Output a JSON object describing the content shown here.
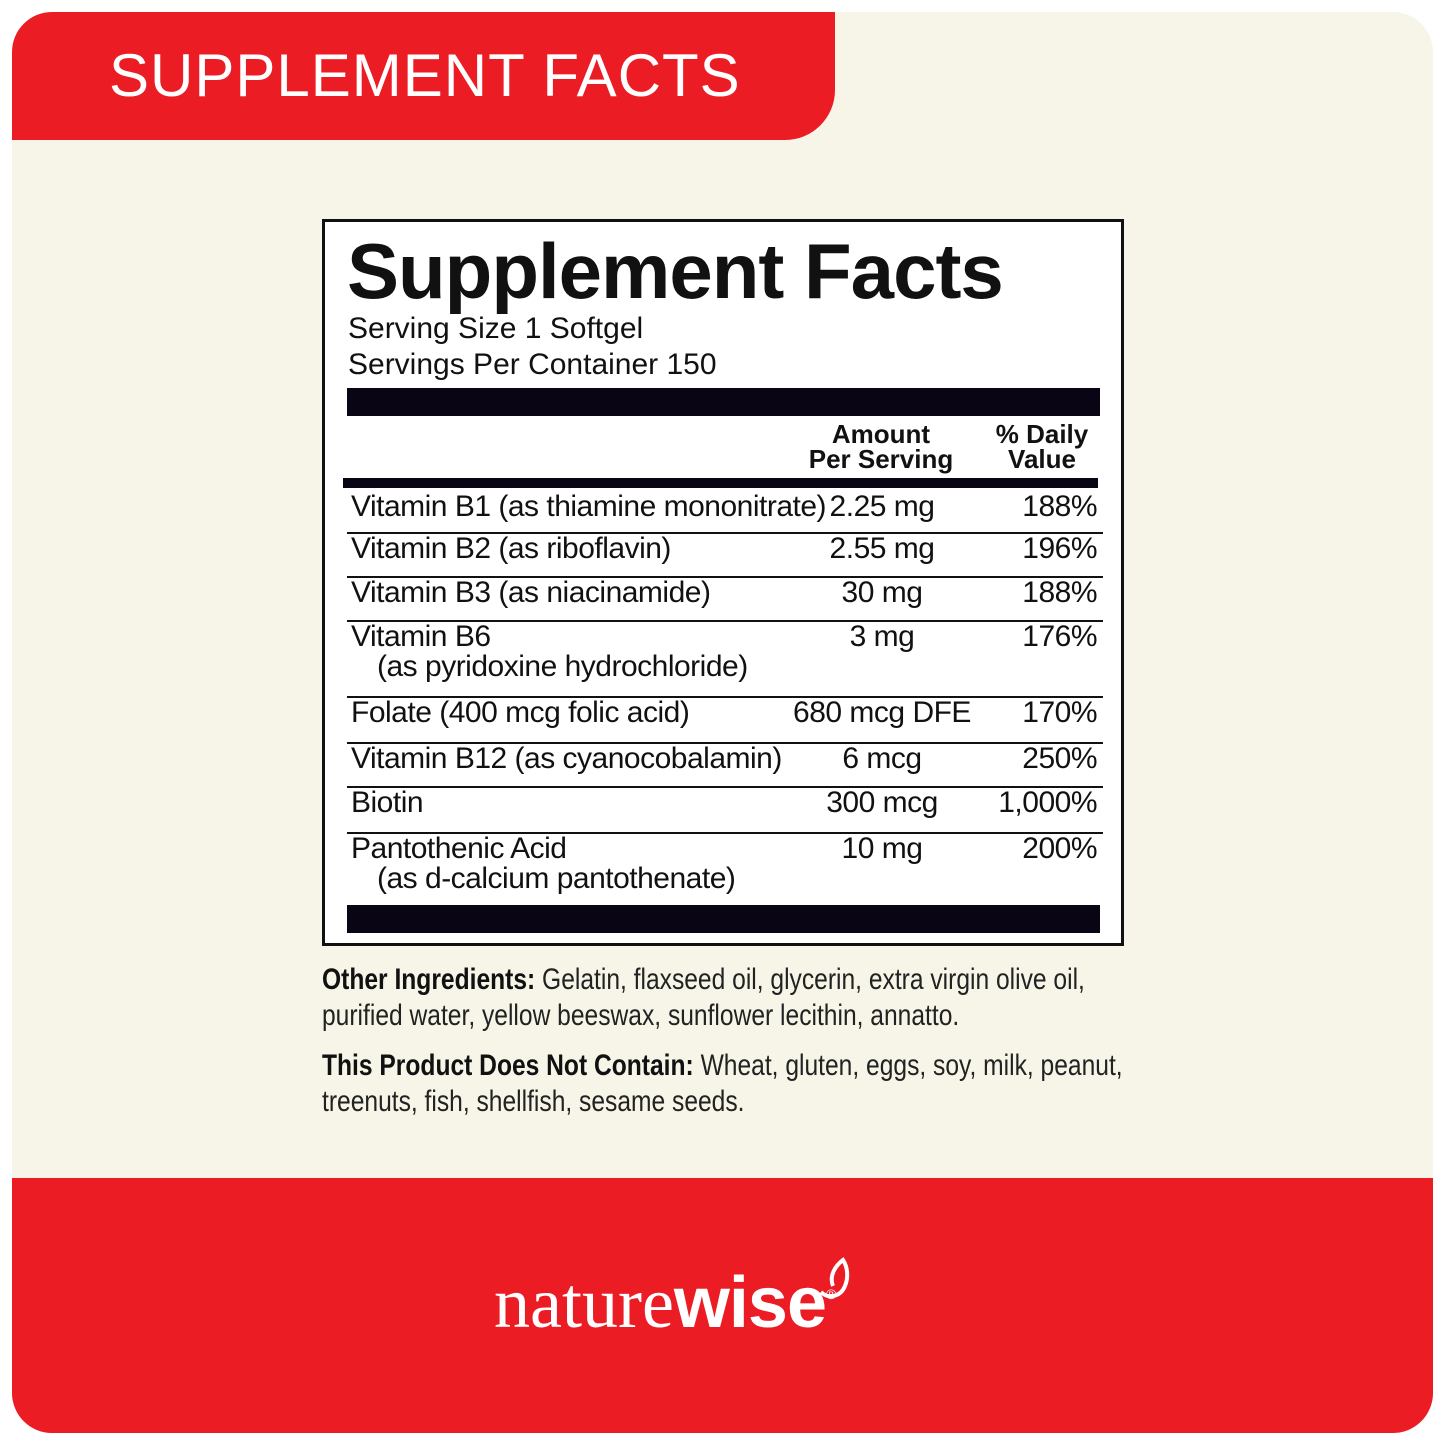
{
  "banner": {
    "title": "SUPPLEMENT FACTS"
  },
  "facts": {
    "title": "Supplement Facts",
    "serving_size": "Serving Size 1 Softgel",
    "servings_per_container": "Servings Per Container 150",
    "col_amount": [
      "Amount",
      "Per Serving"
    ],
    "col_dv": [
      "% Daily",
      "Value"
    ],
    "rows": [
      {
        "name": "Vitamin B1 (as thiamine mononitrate)",
        "sub": "",
        "amount": "2.25 mg",
        "dv": "188%"
      },
      {
        "name": "Vitamin B2 (as riboflavin)",
        "sub": "",
        "amount": "2.55 mg",
        "dv": "196%"
      },
      {
        "name": "Vitamin B3 (as niacinamide)",
        "sub": "",
        "amount": "30 mg",
        "dv": "188%"
      },
      {
        "name": "Vitamin B6",
        "sub": "(as pyridoxine hydrochloride)",
        "amount": "3 mg",
        "dv": "176%"
      },
      {
        "name": "Folate (400 mcg folic acid)",
        "sub": "",
        "amount": "680 mcg DFE",
        "dv": "170%"
      },
      {
        "name": "Vitamin B12 (as cyanocobalamin)",
        "sub": "",
        "amount": "6 mcg",
        "dv": "250%"
      },
      {
        "name": "Biotin",
        "sub": "",
        "amount": "300 mcg",
        "dv": "1,000%"
      },
      {
        "name": "Pantothenic Acid",
        "sub": "(as d-calcium pantothenate)",
        "amount": "10 mg",
        "dv": "200%"
      }
    ]
  },
  "other_ingredients": {
    "label": "Other Ingredients:",
    "text": " Gelatin, flaxseed oil, glycerin, extra virgin olive oil, purified water, yellow beeswax, sunflower lecithin, annatto."
  },
  "does_not_contain": {
    "label": "This Product Does Not Contain:",
    "text": " Wheat, gluten, eggs, soy, milk, peanut, treenuts, fish, shellfish, sesame seeds."
  },
  "brand": {
    "part1": "nature",
    "part2": "wise",
    "reg": "®"
  },
  "colors": {
    "brand_red": "#ec1c24",
    "background": "#f6f5e7"
  }
}
